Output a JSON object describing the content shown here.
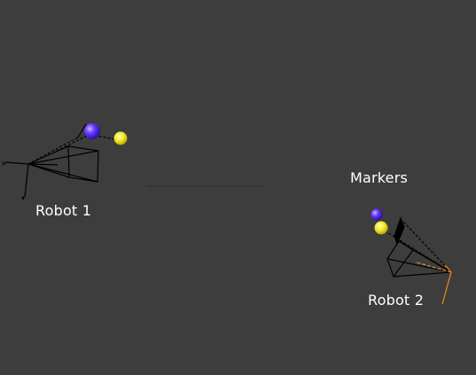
{
  "viewport": {
    "background": "#3d3d3d",
    "labels": {
      "robot1": "Robot 1",
      "robot2": "Robot 2",
      "markers": "Markers"
    }
  },
  "colors": {
    "wire": "#000000",
    "marker_blue": "#6a3cff",
    "marker_yellow": "#f3e62a",
    "axis_orange": "#f08a1a"
  }
}
